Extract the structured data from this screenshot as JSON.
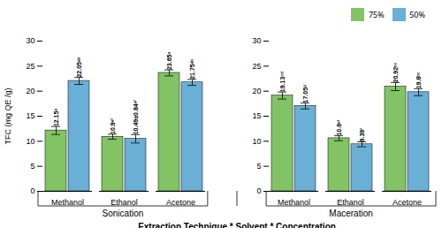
{
  "chart_data": {
    "type": "bar",
    "categories": [
      "Methanol",
      "Ethanol",
      "Acetone",
      "Methanol",
      "Ethanol",
      "Acetone"
    ],
    "group_labels": [
      "Sonication",
      "Maceration"
    ],
    "series": [
      {
        "name": "75%",
        "color": "#82c465",
        "values": [
          12.15,
          10.9,
          23.65,
          19.13,
          10.6,
          20.92
        ],
        "errors": [
          0.8,
          0.5,
          0.6,
          0.7,
          0.5,
          0.8
        ],
        "value_labels": [
          "12.15ᵉ",
          "10.9ᵉᶠ",
          "23.65ᵃ",
          "19.13ᶜᵈ",
          "10.6ᵉᶠ",
          "20.92ᵇᶜ"
        ]
      },
      {
        "name": "50%",
        "color": "#6aafd6",
        "values": [
          22.05,
          10.49,
          21.75,
          17.05,
          9.39,
          19.8
        ],
        "errors": [
          0.7,
          0.84,
          0.6,
          0.6,
          0.5,
          0.7
        ],
        "value_labels": [
          "22.05ᵃᵇ",
          "10.49±0.84ᵉᶠ",
          "21.75ᵃᵇ",
          "17.05ᵈ",
          "9.39ᶠ",
          "19.8ᵇᶜ"
        ]
      }
    ],
    "ylim": [
      0,
      30
    ],
    "yticks": [
      0,
      5,
      10,
      15,
      20,
      25,
      30
    ],
    "ylabel": "TFC (mg QE /g)",
    "xlabel": "Extraction Technique * Solvent * Concentration",
    "data_labels": true,
    "legend": "upper right"
  }
}
